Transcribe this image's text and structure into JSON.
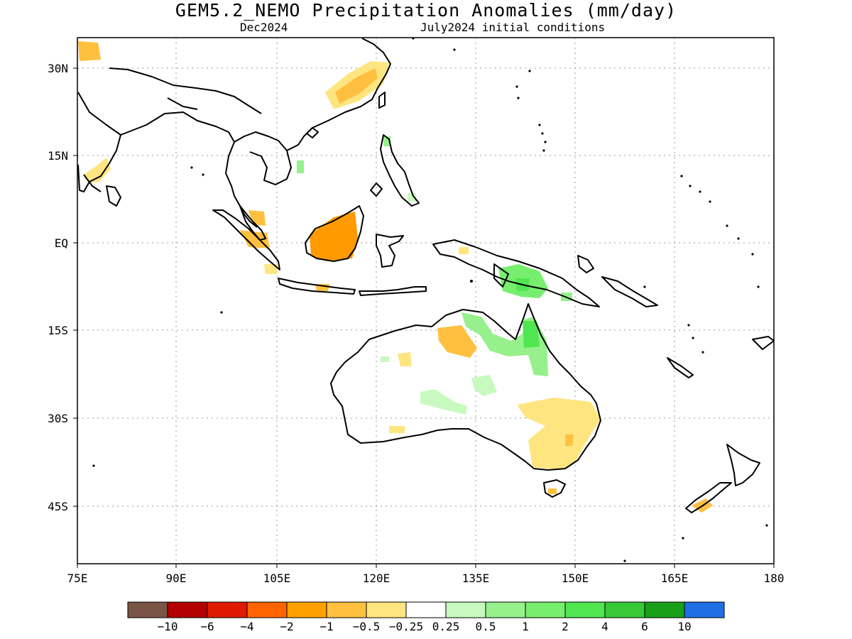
{
  "title": "GEM5.2_NEMO Precipitation Anomalies (mm/day)",
  "valid_month": "Dec2024",
  "init_conditions": "July2024 initial conditions",
  "axes": {
    "lon_ticks": [
      "75E",
      "90E",
      "105E",
      "120E",
      "135E",
      "150E",
      "165E",
      "180"
    ],
    "lat_ticks": [
      "30N",
      "15N",
      "EQ",
      "15S",
      "30S",
      "45S"
    ]
  },
  "colorbar": {
    "colors": [
      "#7a5446",
      "#b30000",
      "#e01a00",
      "#ff6400",
      "#ffa000",
      "#ffc040",
      "#ffe580",
      "#ffffff",
      "#c8fac0",
      "#96f08c",
      "#78ee6e",
      "#50e650",
      "#38c838",
      "#18a018",
      "#1e6ee6"
    ],
    "labels": [
      "−10",
      "−6",
      "−4",
      "−2",
      "−1",
      "−0.5",
      "−0.25",
      "0.25",
      "0.5",
      "1",
      "2",
      "4",
      "6",
      "10"
    ]
  }
}
